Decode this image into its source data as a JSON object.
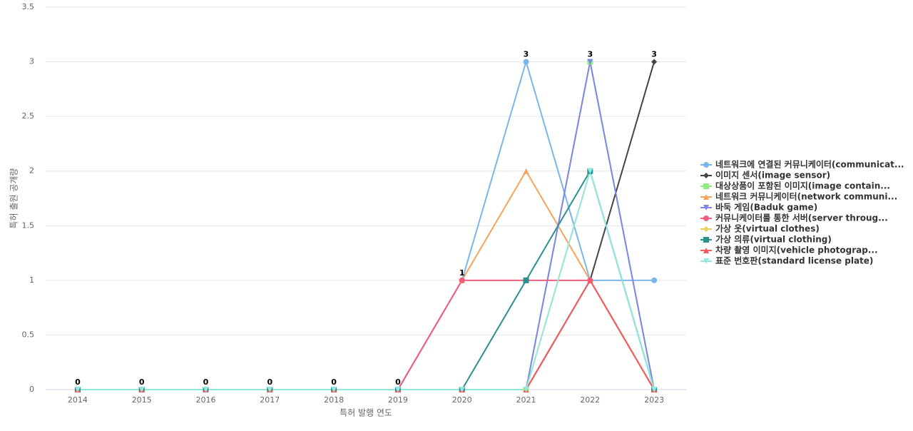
{
  "chart_data": {
    "type": "line",
    "x_label": "특허 발행 연도",
    "y_label": "특허 출원 공개량",
    "categories": [
      "2014",
      "2015",
      "2016",
      "2017",
      "2018",
      "2019",
      "2020",
      "2021",
      "2022",
      "2023"
    ],
    "ylim": [
      0,
      3.5
    ],
    "yticks": [
      0,
      0.5,
      1,
      1.5,
      2,
      2.5,
      3,
      3.5
    ],
    "grid": true,
    "legend": "right",
    "series": [
      {
        "name": "네트워크에 연결된 커뮤니케이터(communicat...",
        "color": "#7cb5ec",
        "marker": "circle",
        "values": [
          0,
          0,
          0,
          0,
          0,
          0,
          1,
          3,
          1,
          1
        ]
      },
      {
        "name": "이미지 센서(image sensor)",
        "color": "#434348",
        "marker": "diamond",
        "values": [
          0,
          0,
          0,
          0,
          0,
          0,
          0,
          0,
          1,
          3
        ]
      },
      {
        "name": "대상상품이 포함된 이미지(image contain...",
        "color": "#90ed7d",
        "marker": "square",
        "values": [
          0,
          0,
          0,
          0,
          0,
          0,
          0,
          0,
          3,
          0
        ]
      },
      {
        "name": "네트워크 커뮤니케이터(network communi...",
        "color": "#f7a35c",
        "marker": "triangle",
        "values": [
          0,
          0,
          0,
          0,
          0,
          0,
          1,
          2,
          1,
          0
        ]
      },
      {
        "name": "바둑 게임(Baduk game)",
        "color": "#8085e9",
        "marker": "triangle-down",
        "values": [
          0,
          0,
          0,
          0,
          0,
          0,
          0,
          0,
          3,
          0
        ]
      },
      {
        "name": "커뮤니케이터를 통한 서버(server throug...",
        "color": "#f15c80",
        "marker": "circle",
        "values": [
          0,
          0,
          0,
          0,
          0,
          0,
          1,
          1,
          1,
          0
        ]
      },
      {
        "name": "가상 옷(virtual clothes)",
        "color": "#e4d354",
        "marker": "diamond",
        "values": [
          0,
          0,
          0,
          0,
          0,
          0,
          0,
          0,
          2,
          0
        ]
      },
      {
        "name": "가상 의류(virtual clothing)",
        "color": "#2b908f",
        "marker": "square",
        "values": [
          0,
          0,
          0,
          0,
          0,
          0,
          0,
          1,
          2,
          0
        ]
      },
      {
        "name": "차량 촬영 이미지(vehicle photograp...",
        "color": "#f45b5b",
        "marker": "triangle",
        "values": [
          0,
          0,
          0,
          0,
          0,
          0,
          0,
          0,
          1,
          0
        ]
      },
      {
        "name": "표준 번호판(standard license plate)",
        "color": "#91e8e1",
        "marker": "triangle-down",
        "values": [
          0,
          0,
          0,
          0,
          0,
          0,
          0,
          0,
          2,
          0
        ]
      }
    ]
  }
}
